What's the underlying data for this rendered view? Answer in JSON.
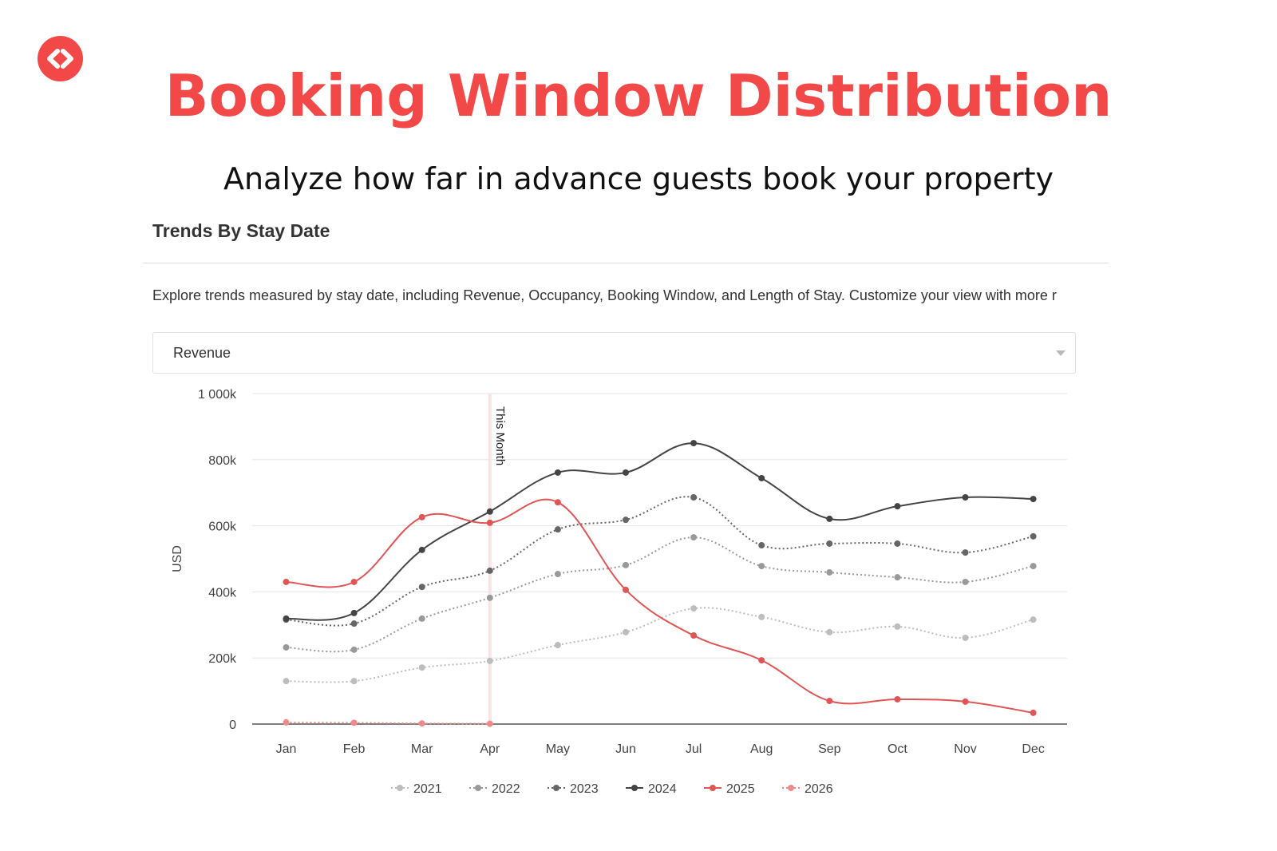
{
  "header": {
    "title": "Booking Window Distribution",
    "subtitle": "Analyze how far in advance guests book your property",
    "logo_icon": "code-brackets-icon",
    "brand_color": "#f24848"
  },
  "card": {
    "title": "Trends By Stay Date",
    "description": "Explore trends measured by stay date, including Revenue, Occupancy, Booking Window, and Length of Stay. Customize your view with more r",
    "metric_select": {
      "value": "Revenue",
      "icon": "chevron-down-icon"
    }
  },
  "chart_data": {
    "type": "line",
    "title": "",
    "xlabel": "",
    "ylabel": "USD",
    "ylim": [
      0,
      1000
    ],
    "y_unit": "k",
    "yticks": [
      0,
      200,
      400,
      600,
      800,
      1000
    ],
    "ytick_labels": [
      "0",
      "200k",
      "400k",
      "600k",
      "800k",
      "1 000k"
    ],
    "categories": [
      "Jan",
      "Feb",
      "Mar",
      "Apr",
      "May",
      "Jun",
      "Jul",
      "Aug",
      "Sep",
      "Oct",
      "Nov",
      "Dec"
    ],
    "grid": true,
    "legend": "bottom",
    "annotation": {
      "label": "This Month",
      "x": "Apr"
    },
    "series": [
      {
        "name": "2021",
        "color": "#bdbdbd",
        "dash": "dotted",
        "values": [
          130,
          130,
          171,
          191,
          239,
          278,
          350,
          324,
          278,
          295,
          261,
          316
        ]
      },
      {
        "name": "2022",
        "color": "#999999",
        "dash": "dotted",
        "values": [
          232,
          225,
          319,
          382,
          454,
          481,
          565,
          478,
          459,
          444,
          430,
          478
        ]
      },
      {
        "name": "2023",
        "color": "#666666",
        "dash": "dotted",
        "values": [
          316,
          304,
          415,
          464,
          589,
          618,
          686,
          541,
          546,
          546,
          519,
          568
        ]
      },
      {
        "name": "2024",
        "color": "#444444",
        "dash": "solid",
        "values": [
          319,
          336,
          527,
          643,
          761,
          761,
          850,
          744,
          621,
          659,
          686,
          681
        ]
      },
      {
        "name": "2025",
        "color": "#e05555",
        "dash": "solid",
        "values": [
          430,
          430,
          626,
          609,
          671,
          406,
          268,
          193,
          70,
          75,
          68,
          34
        ]
      },
      {
        "name": "2026",
        "color": "#f08a8a",
        "dash": "dotted",
        "values": [
          5,
          4,
          2,
          1,
          null,
          null,
          null,
          null,
          null,
          null,
          null,
          null
        ]
      }
    ]
  }
}
